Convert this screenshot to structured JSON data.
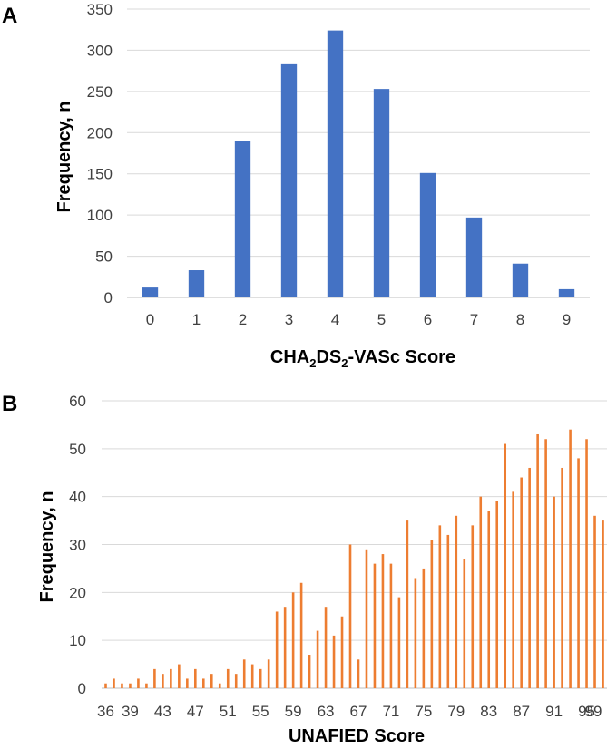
{
  "chart_data": [
    {
      "type": "bar",
      "panel": "A",
      "color": "#4472C4",
      "categories": [
        "0",
        "1",
        "2",
        "3",
        "4",
        "5",
        "6",
        "7",
        "8",
        "9"
      ],
      "values": [
        12,
        33,
        190,
        283,
        324,
        253,
        151,
        97,
        41,
        10
      ],
      "ylim": [
        0,
        350
      ],
      "yticks": [
        0,
        50,
        100,
        150,
        200,
        250,
        300,
        350
      ],
      "xlabel": {
        "pre": "CHA",
        "s1": "2",
        "mid": "DS",
        "s2": "2",
        "post": "-VASc Score"
      },
      "ylabel": "Frequency, n",
      "grid": true
    },
    {
      "type": "bar",
      "panel": "B",
      "color": "#ED7D31",
      "x_start": 36,
      "values": [
        1,
        2,
        1,
        1,
        2,
        1,
        4,
        3,
        4,
        5,
        2,
        4,
        2,
        3,
        1,
        4,
        3,
        6,
        5,
        4,
        6,
        16,
        17,
        20,
        22,
        7,
        12,
        17,
        11,
        15,
        30,
        6,
        29,
        26,
        28,
        26,
        19,
        35,
        23,
        25,
        31,
        34,
        32,
        36,
        27,
        34,
        40,
        37,
        39,
        51,
        41,
        44,
        46,
        53,
        52,
        40,
        46,
        54,
        48,
        52,
        36,
        35
      ],
      "tick_labels": [
        "36",
        "39",
        "43",
        "47",
        "51",
        "55",
        "59",
        "63",
        "67",
        "71",
        "75",
        "79",
        "83",
        "87",
        "91",
        "95",
        "99"
      ],
      "ylim": [
        0,
        60
      ],
      "yticks": [
        0,
        10,
        20,
        30,
        40,
        50,
        60
      ],
      "xlabel": "UNAFIED Score",
      "ylabel": "Frequency, n",
      "grid": true
    }
  ]
}
